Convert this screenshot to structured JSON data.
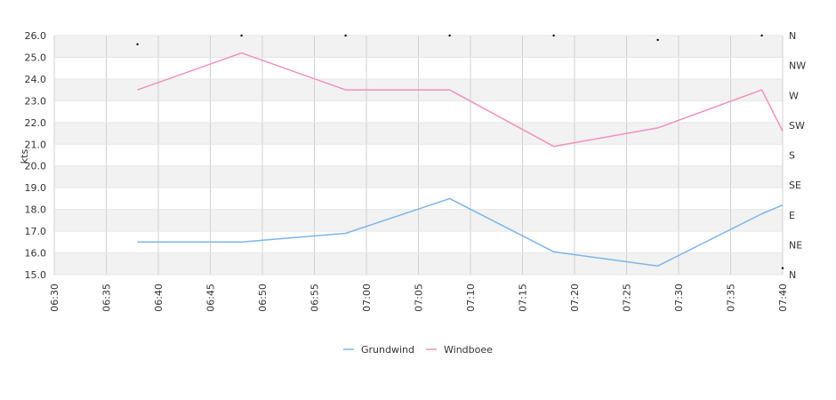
{
  "chart_data": {
    "type": "line",
    "ylabel": "kts",
    "ylim": [
      15.0,
      26.0
    ],
    "y_ticks": [
      "15.0",
      "16.0",
      "17.0",
      "18.0",
      "19.0",
      "20.0",
      "21.0",
      "22.0",
      "23.0",
      "24.0",
      "25.0",
      "26.0"
    ],
    "x_ticks": [
      "06:30",
      "06:35",
      "06:40",
      "06:45",
      "06:50",
      "06:55",
      "07:00",
      "07:05",
      "07:10",
      "07:15",
      "07:20",
      "07:25",
      "07:30",
      "07:35",
      "07:40"
    ],
    "xlim": [
      "06:30",
      "07:40"
    ],
    "right_axis_labels": [
      "N",
      "NE",
      "E",
      "SE",
      "S",
      "SW",
      "W",
      "NW",
      "N"
    ],
    "grid": "horizontal bands and vertical lines",
    "legend_position": "bottom-center",
    "series": [
      {
        "name": "Grundwind",
        "color": "#7cb5ec",
        "x": [
          "06:38",
          "06:48",
          "06:58",
          "07:08",
          "07:18",
          "07:28",
          "07:38",
          "07:40"
        ],
        "values": [
          16.5,
          16.5,
          16.9,
          18.5,
          16.05,
          15.4,
          17.8,
          18.2
        ]
      },
      {
        "name": "Windboee",
        "color": "#f28fc0",
        "x": [
          "06:38",
          "06:48",
          "06:58",
          "07:08",
          "07:18",
          "07:28",
          "07:38",
          "07:40"
        ],
        "values": [
          23.5,
          25.2,
          23.5,
          23.5,
          20.9,
          21.75,
          23.5,
          21.6
        ]
      }
    ],
    "direction_markers": {
      "x": [
        "06:38",
        "06:48",
        "06:58",
        "07:08",
        "07:18",
        "07:28",
        "07:38",
        "07:40"
      ],
      "values": [
        25.6,
        26.0,
        26.0,
        26.0,
        26.0,
        25.8,
        26.0,
        15.3
      ]
    }
  }
}
